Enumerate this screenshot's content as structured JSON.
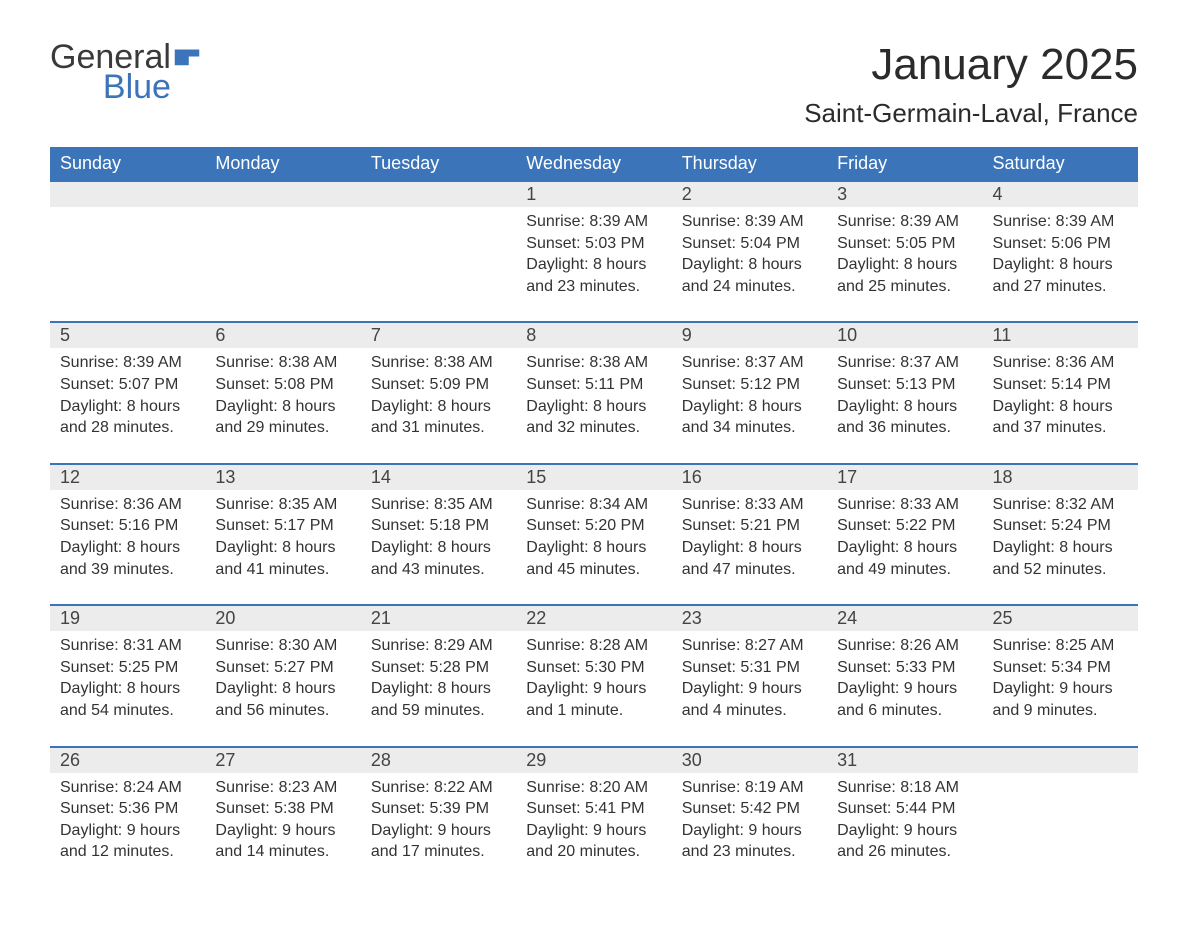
{
  "logo": {
    "line1": "General",
    "line2": "Blue"
  },
  "title": "January 2025",
  "location": "Saint-Germain-Laval, France",
  "colors": {
    "header_bg": "#3b74b9",
    "header_text": "#ffffff",
    "daynum_bg": "#ececec",
    "border": "#3b74b9",
    "page_bg": "#ffffff",
    "body_text": "#333333"
  },
  "weekdays": [
    "Sunday",
    "Monday",
    "Tuesday",
    "Wednesday",
    "Thursday",
    "Friday",
    "Saturday"
  ],
  "weeks": [
    [
      null,
      null,
      null,
      {
        "n": "1",
        "sunrise": "8:39 AM",
        "sunset": "5:03 PM",
        "daylight": "8 hours and 23 minutes."
      },
      {
        "n": "2",
        "sunrise": "8:39 AM",
        "sunset": "5:04 PM",
        "daylight": "8 hours and 24 minutes."
      },
      {
        "n": "3",
        "sunrise": "8:39 AM",
        "sunset": "5:05 PM",
        "daylight": "8 hours and 25 minutes."
      },
      {
        "n": "4",
        "sunrise": "8:39 AM",
        "sunset": "5:06 PM",
        "daylight": "8 hours and 27 minutes."
      }
    ],
    [
      {
        "n": "5",
        "sunrise": "8:39 AM",
        "sunset": "5:07 PM",
        "daylight": "8 hours and 28 minutes."
      },
      {
        "n": "6",
        "sunrise": "8:38 AM",
        "sunset": "5:08 PM",
        "daylight": "8 hours and 29 minutes."
      },
      {
        "n": "7",
        "sunrise": "8:38 AM",
        "sunset": "5:09 PM",
        "daylight": "8 hours and 31 minutes."
      },
      {
        "n": "8",
        "sunrise": "8:38 AM",
        "sunset": "5:11 PM",
        "daylight": "8 hours and 32 minutes."
      },
      {
        "n": "9",
        "sunrise": "8:37 AM",
        "sunset": "5:12 PM",
        "daylight": "8 hours and 34 minutes."
      },
      {
        "n": "10",
        "sunrise": "8:37 AM",
        "sunset": "5:13 PM",
        "daylight": "8 hours and 36 minutes."
      },
      {
        "n": "11",
        "sunrise": "8:36 AM",
        "sunset": "5:14 PM",
        "daylight": "8 hours and 37 minutes."
      }
    ],
    [
      {
        "n": "12",
        "sunrise": "8:36 AM",
        "sunset": "5:16 PM",
        "daylight": "8 hours and 39 minutes."
      },
      {
        "n": "13",
        "sunrise": "8:35 AM",
        "sunset": "5:17 PM",
        "daylight": "8 hours and 41 minutes."
      },
      {
        "n": "14",
        "sunrise": "8:35 AM",
        "sunset": "5:18 PM",
        "daylight": "8 hours and 43 minutes."
      },
      {
        "n": "15",
        "sunrise": "8:34 AM",
        "sunset": "5:20 PM",
        "daylight": "8 hours and 45 minutes."
      },
      {
        "n": "16",
        "sunrise": "8:33 AM",
        "sunset": "5:21 PM",
        "daylight": "8 hours and 47 minutes."
      },
      {
        "n": "17",
        "sunrise": "8:33 AM",
        "sunset": "5:22 PM",
        "daylight": "8 hours and 49 minutes."
      },
      {
        "n": "18",
        "sunrise": "8:32 AM",
        "sunset": "5:24 PM",
        "daylight": "8 hours and 52 minutes."
      }
    ],
    [
      {
        "n": "19",
        "sunrise": "8:31 AM",
        "sunset": "5:25 PM",
        "daylight": "8 hours and 54 minutes."
      },
      {
        "n": "20",
        "sunrise": "8:30 AM",
        "sunset": "5:27 PM",
        "daylight": "8 hours and 56 minutes."
      },
      {
        "n": "21",
        "sunrise": "8:29 AM",
        "sunset": "5:28 PM",
        "daylight": "8 hours and 59 minutes."
      },
      {
        "n": "22",
        "sunrise": "8:28 AM",
        "sunset": "5:30 PM",
        "daylight": "9 hours and 1 minute."
      },
      {
        "n": "23",
        "sunrise": "8:27 AM",
        "sunset": "5:31 PM",
        "daylight": "9 hours and 4 minutes."
      },
      {
        "n": "24",
        "sunrise": "8:26 AM",
        "sunset": "5:33 PM",
        "daylight": "9 hours and 6 minutes."
      },
      {
        "n": "25",
        "sunrise": "8:25 AM",
        "sunset": "5:34 PM",
        "daylight": "9 hours and 9 minutes."
      }
    ],
    [
      {
        "n": "26",
        "sunrise": "8:24 AM",
        "sunset": "5:36 PM",
        "daylight": "9 hours and 12 minutes."
      },
      {
        "n": "27",
        "sunrise": "8:23 AM",
        "sunset": "5:38 PM",
        "daylight": "9 hours and 14 minutes."
      },
      {
        "n": "28",
        "sunrise": "8:22 AM",
        "sunset": "5:39 PM",
        "daylight": "9 hours and 17 minutes."
      },
      {
        "n": "29",
        "sunrise": "8:20 AM",
        "sunset": "5:41 PM",
        "daylight": "9 hours and 20 minutes."
      },
      {
        "n": "30",
        "sunrise": "8:19 AM",
        "sunset": "5:42 PM",
        "daylight": "9 hours and 23 minutes."
      },
      {
        "n": "31",
        "sunrise": "8:18 AM",
        "sunset": "5:44 PM",
        "daylight": "9 hours and 26 minutes."
      },
      null
    ]
  ],
  "labels": {
    "sunrise": "Sunrise: ",
    "sunset": "Sunset: ",
    "daylight": "Daylight: "
  }
}
